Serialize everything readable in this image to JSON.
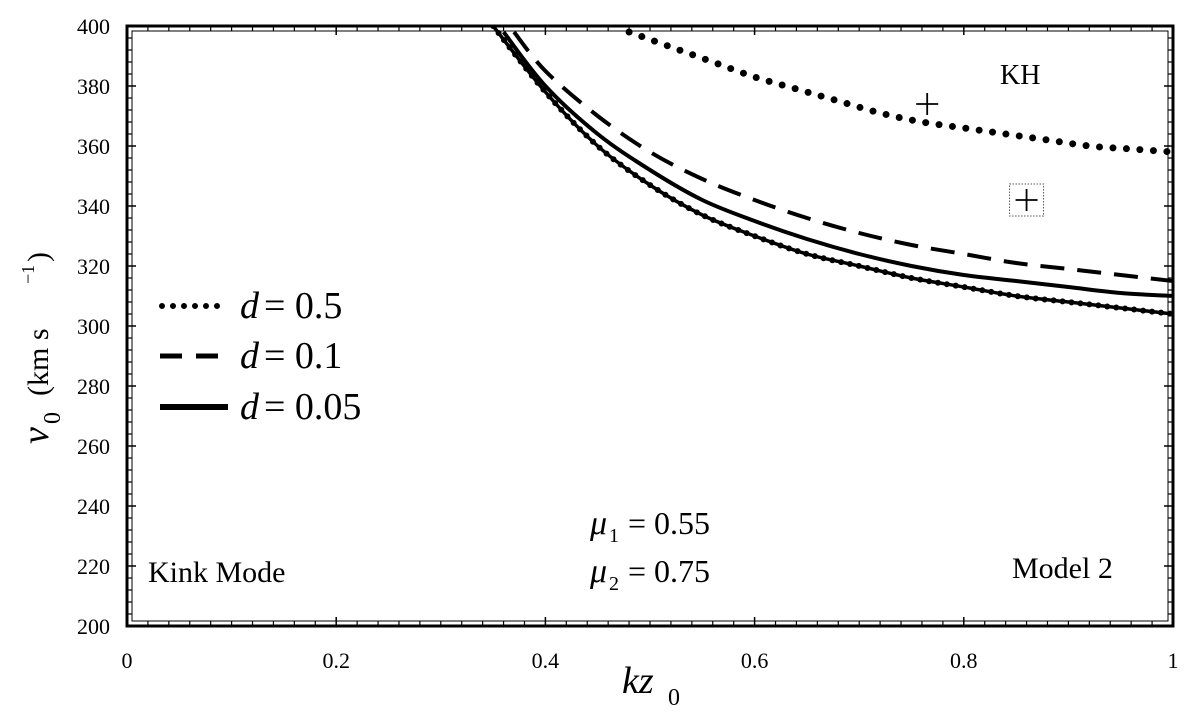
{
  "chart_data": {
    "type": "line",
    "xlabel": "kz0",
    "ylabel": "v0 (km s−1)",
    "xlim": [
      0,
      1
    ],
    "ylim": [
      200,
      400
    ],
    "x_ticks": [
      0,
      0.2,
      0.4,
      0.6,
      0.8,
      1
    ],
    "x_tick_labels": [
      "0",
      "0.2",
      "0.4",
      "0.6",
      "0.8",
      "1"
    ],
    "y_ticks": [
      200,
      220,
      240,
      260,
      280,
      300,
      320,
      340,
      360,
      380,
      400
    ],
    "y_tick_labels": [
      "200",
      "220",
      "240",
      "260",
      "280",
      "300",
      "320",
      "340",
      "360",
      "380",
      "400"
    ],
    "grid": false,
    "legend_position": "center-left",
    "series": [
      {
        "name": "d = 0.5",
        "style": "dotted",
        "x": [
          0.48,
          0.52,
          0.56,
          0.6,
          0.64,
          0.68,
          0.72,
          0.76,
          0.8,
          0.84,
          0.88,
          0.92,
          0.96,
          1.0
        ],
        "y": [
          398,
          393,
          388,
          383,
          379,
          375,
          371,
          368,
          366,
          364,
          362,
          360,
          359,
          358
        ]
      },
      {
        "name": "d = 0.1",
        "style": "dashed",
        "x": [
          0.37,
          0.4,
          0.45,
          0.5,
          0.55,
          0.6,
          0.65,
          0.7,
          0.75,
          0.8,
          0.85,
          0.9,
          0.95,
          1.0
        ],
        "y": [
          398,
          385,
          370,
          358,
          349,
          342,
          336,
          331,
          327,
          324,
          321,
          319,
          317,
          315
        ]
      },
      {
        "name": "d = 0.05",
        "style": "solid",
        "x": [
          0.36,
          0.4,
          0.45,
          0.5,
          0.55,
          0.6,
          0.65,
          0.7,
          0.75,
          0.8,
          0.85,
          0.9,
          0.95,
          1.0
        ],
        "y": [
          398,
          380,
          364,
          352,
          342,
          335,
          329,
          324,
          320,
          317,
          315,
          313,
          311,
          310
        ]
      },
      {
        "name": "",
        "style": "solid-dotted",
        "x": [
          0.35,
          0.4,
          0.45,
          0.5,
          0.55,
          0.6,
          0.65,
          0.7,
          0.75,
          0.8,
          0.85,
          0.9,
          0.95,
          1.0
        ],
        "y": [
          400,
          378,
          360,
          347,
          337,
          330,
          324,
          320,
          316,
          313,
          310,
          308,
          306,
          304
        ]
      }
    ],
    "markers": [
      {
        "x": 0.765,
        "y": 374,
        "symbol": "+",
        "boxed": false
      },
      {
        "x": 0.86,
        "y": 342,
        "symbol": "+",
        "boxed": true
      }
    ]
  },
  "legend": {
    "items": [
      {
        "var": "d",
        "value": "= 0.5",
        "style": "dotted"
      },
      {
        "var": "d",
        "value": "= 0.1",
        "style": "dashed"
      },
      {
        "var": "d",
        "value": "= 0.05",
        "style": "solid"
      }
    ]
  },
  "annotations": {
    "kh": "KH",
    "kink_mode": "Kink Mode",
    "model": "Model 2",
    "mu1_var": "μ",
    "mu1_sub": "1",
    "mu1_value": "= 0.55",
    "mu2_var": "μ",
    "mu2_sub": "2",
    "mu2_value": "= 0.75"
  },
  "axis_titles": {
    "x_main": "kz",
    "x_sub": "0",
    "y_main": "v",
    "y_sub": "0",
    "y_unit_open": "(km s",
    "y_unit_sup": "−1",
    "y_unit_close": ")"
  }
}
